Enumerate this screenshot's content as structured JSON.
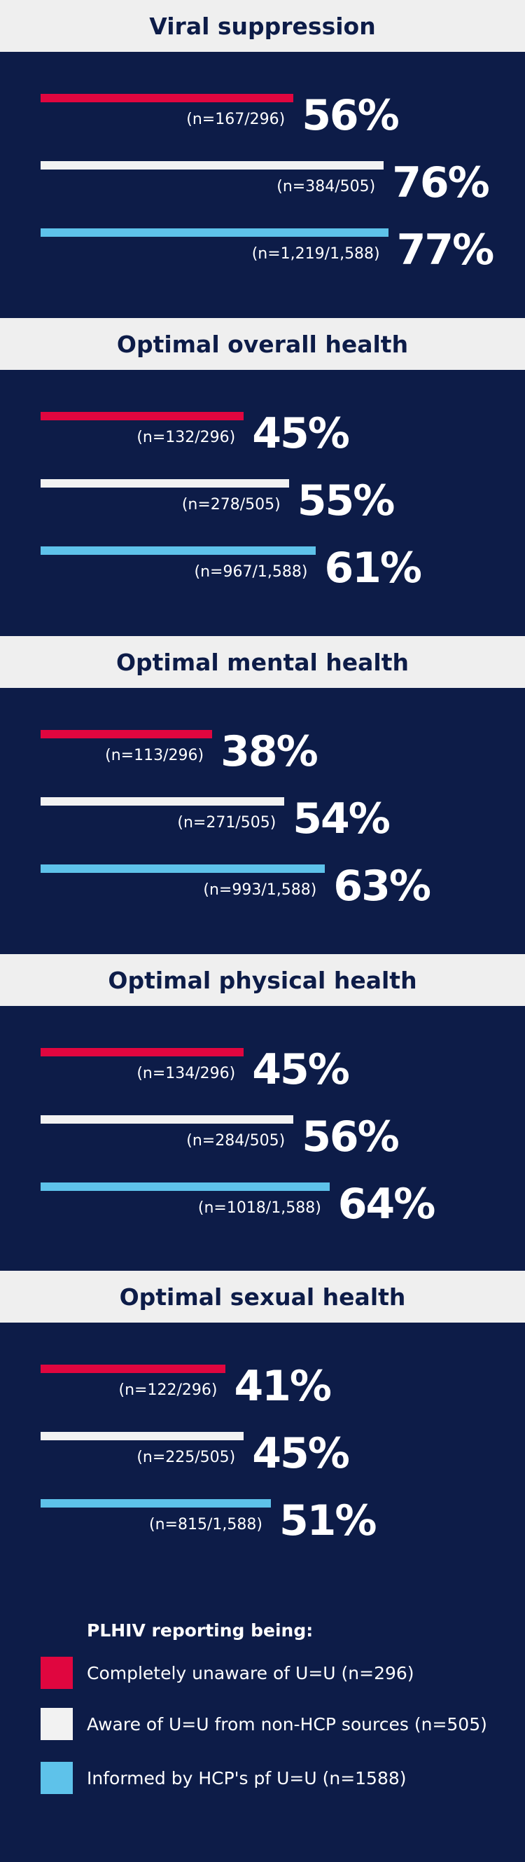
{
  "colors": {
    "background": "#0d1c48",
    "title_band": "#efefef",
    "unaware": "#e0063f",
    "aware_non_hcp": "#f2f2f2",
    "informed_hcp": "#5ec2ea"
  },
  "chart_data": {
    "type": "bar",
    "orientation": "horizontal",
    "xlim": [
      0,
      100
    ],
    "grid": false,
    "legend_position": "bottom",
    "series": [
      {
        "name": "Completely unaware of U=U (n=296)",
        "color": "#e0063f"
      },
      {
        "name": "Aware of U=U from non-HCP sources (n=505)",
        "color": "#f2f2f2"
      },
      {
        "name": "Informed by HCP's pf U=U (n=1588)",
        "color": "#5ec2ea"
      }
    ],
    "panels": [
      {
        "title": "Viral suppression",
        "bars": [
          {
            "value": 56,
            "label": "56%",
            "n": "(n=167/296)"
          },
          {
            "value": 76,
            "label": "76%",
            "n": "(n=384/505)"
          },
          {
            "value": 77,
            "label": "77%",
            "n": "(n=1,219/1,588)"
          }
        ]
      },
      {
        "title": "Optimal overall health",
        "bars": [
          {
            "value": 45,
            "label": "45%",
            "n": "(n=132/296)"
          },
          {
            "value": 55,
            "label": "55%",
            "n": "(n=278/505)"
          },
          {
            "value": 61,
            "label": "61%",
            "n": "(n=967/1,588)"
          }
        ]
      },
      {
        "title": "Optimal mental health",
        "bars": [
          {
            "value": 38,
            "label": "38%",
            "n": "(n=113/296)"
          },
          {
            "value": 54,
            "label": "54%",
            "n": "(n=271/505)"
          },
          {
            "value": 63,
            "label": "63%",
            "n": "(n=993/1,588)"
          }
        ]
      },
      {
        "title": "Optimal physical health",
        "bars": [
          {
            "value": 45,
            "label": "45%",
            "n": "(n=134/296)"
          },
          {
            "value": 56,
            "label": "56%",
            "n": "(n=284/505)"
          },
          {
            "value": 64,
            "label": "64%",
            "n": "(n=1018/1,588)"
          }
        ]
      },
      {
        "title": "Optimal sexual health",
        "bars": [
          {
            "value": 41,
            "label": "41%",
            "n": "(n=122/296)"
          },
          {
            "value": 45,
            "label": "45%",
            "n": "(n=225/505)"
          },
          {
            "value": 51,
            "label": "51%",
            "n": "(n=815/1,588)"
          }
        ]
      }
    ]
  },
  "legend": {
    "heading": "PLHIV reporting being:",
    "items": [
      {
        "label": "Completely unaware of U=U (n=296)",
        "color": "#e0063f"
      },
      {
        "label": "Aware of U=U from non-HCP sources (n=505)",
        "color": "#f2f2f2"
      },
      {
        "label": "Informed by HCP's pf U=U (n=1588)",
        "color": "#5ec2ea"
      }
    ]
  }
}
